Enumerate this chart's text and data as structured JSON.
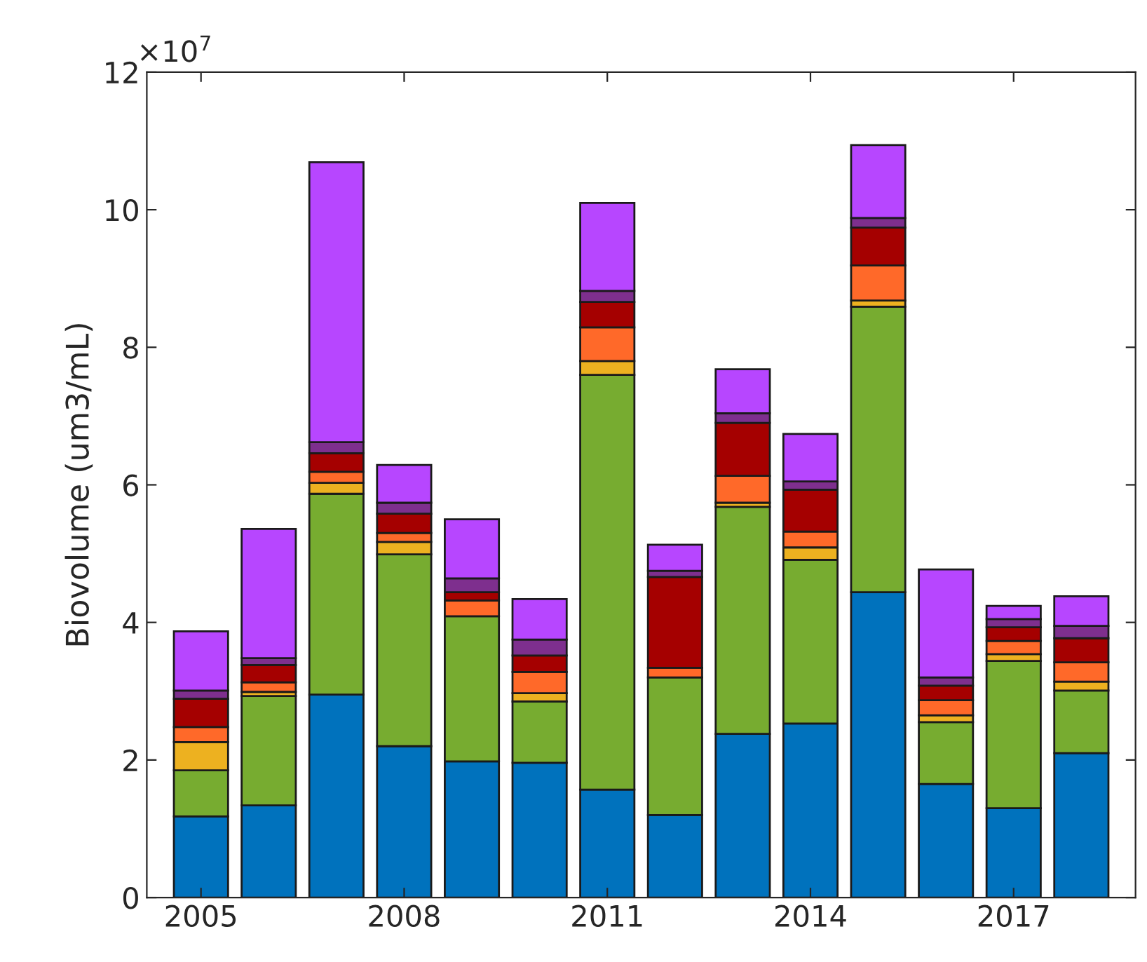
{
  "chart_data": {
    "type": "bar",
    "stacked": true,
    "ylabel": "Biovolume (um3/mL)",
    "x": [
      2005,
      2006,
      2007,
      2008,
      2009,
      2010,
      2011,
      2012,
      2013,
      2014,
      2015,
      2016,
      2017,
      2018
    ],
    "series": [
      {
        "color": "#0072bd",
        "values": [
          1.18,
          1.34,
          2.95,
          2.2,
          1.98,
          1.96,
          1.57,
          1.2,
          2.38,
          2.53,
          4.44,
          1.65,
          1.3,
          2.1
        ]
      },
      {
        "color": "#77ac30",
        "values": [
          0.67,
          1.59,
          2.92,
          2.79,
          2.11,
          0.89,
          6.03,
          2.0,
          3.3,
          2.38,
          4.15,
          0.9,
          2.14,
          0.91
        ]
      },
      {
        "color": "#edb120",
        "values": [
          0.41,
          0.06,
          0.16,
          0.18,
          null,
          0.12,
          0.2,
          null,
          0.06,
          0.18,
          0.09,
          0.1,
          0.1,
          0.13
        ]
      },
      {
        "color": "#ff6929",
        "values": [
          0.22,
          0.14,
          0.16,
          0.13,
          0.23,
          0.31,
          0.49,
          0.14,
          0.39,
          0.23,
          0.51,
          0.22,
          0.19,
          0.28
        ]
      },
      {
        "color": "#a50000",
        "values": [
          0.41,
          0.25,
          0.27,
          0.28,
          0.12,
          0.24,
          0.37,
          1.32,
          0.77,
          0.61,
          0.55,
          0.21,
          0.2,
          0.35
        ]
      },
      {
        "color": "#7e2f8e",
        "values": [
          0.12,
          0.1,
          0.16,
          0.16,
          0.2,
          0.23,
          0.16,
          0.09,
          0.14,
          0.12,
          0.14,
          0.12,
          0.12,
          0.18
        ]
      },
      {
        "color": "#b746ff",
        "values": [
          0.86,
          1.88,
          4.07,
          0.55,
          0.86,
          0.59,
          1.28,
          0.38,
          0.64,
          0.69,
          1.06,
          1.57,
          0.19,
          0.43
        ]
      }
    ],
    "xlim": [
      2004.2,
      2018.8
    ],
    "xticks": [
      2005,
      2008,
      2011,
      2014,
      2017
    ],
    "ylim": [
      0,
      12
    ],
    "yticks": [
      0,
      2,
      4,
      6,
      8,
      10,
      12
    ],
    "annotations": [
      "×10$^{7}$"
    ],
    "grid": false,
    "legend": false
  }
}
